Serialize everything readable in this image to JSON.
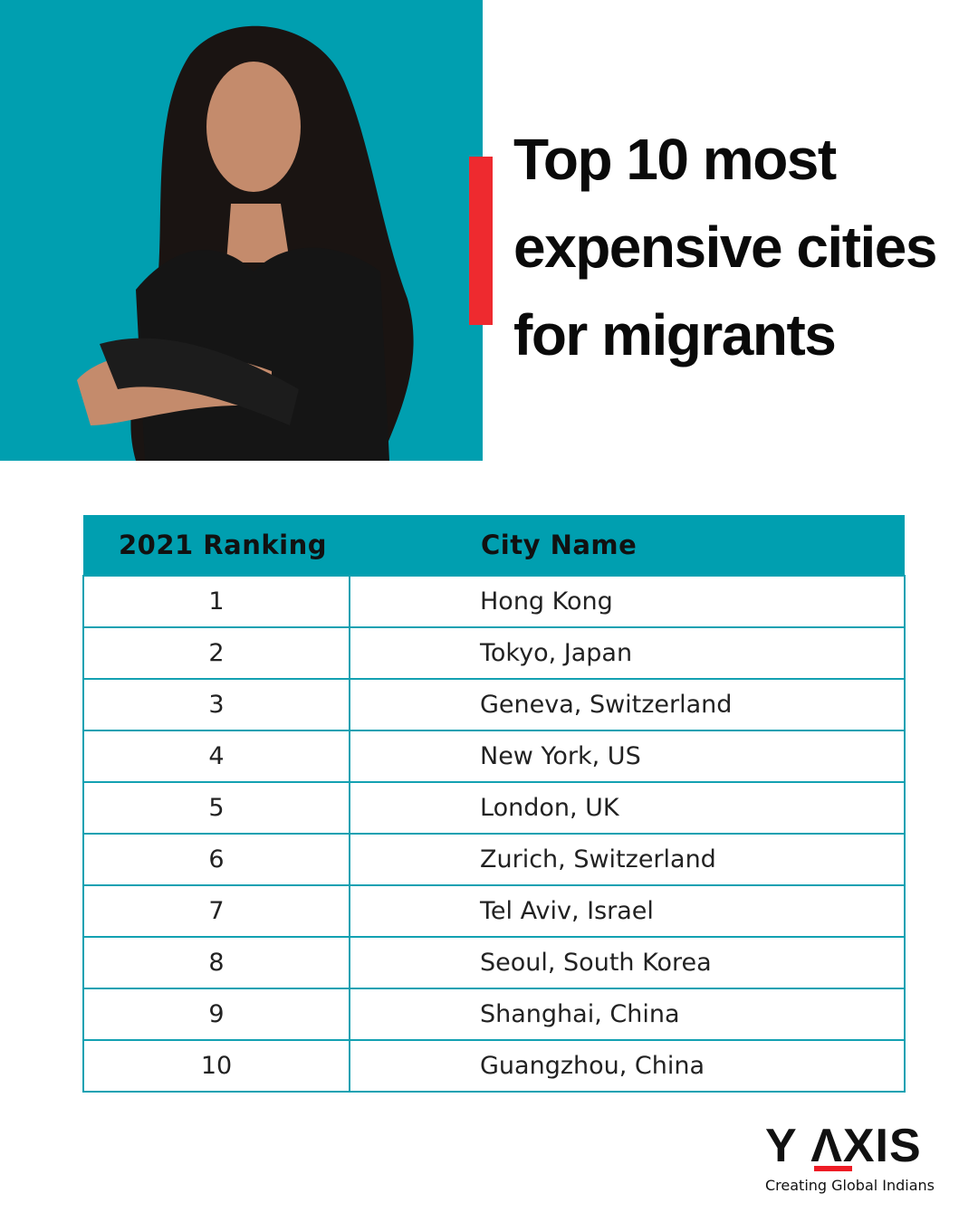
{
  "title": "Top 10 most expensive cities for migrants",
  "title_lines": [
    "Top 10 most",
    "expensive cities",
    "for migrants"
  ],
  "colors": {
    "teal": "#009fb0",
    "red": "#ee2a2f"
  },
  "table": {
    "headers": [
      "2021 Ranking",
      "City Name"
    ],
    "rows": [
      {
        "rank": "1",
        "city": "Hong Kong"
      },
      {
        "rank": "2",
        "city": "Tokyo, Japan"
      },
      {
        "rank": "3",
        "city": "Geneva, Switzerland"
      },
      {
        "rank": "4",
        "city": "New York, US"
      },
      {
        "rank": "5",
        "city": "London, UK"
      },
      {
        "rank": "6",
        "city": "Zurich, Switzerland"
      },
      {
        "rank": "7",
        "city": "Tel Aviv, Israel"
      },
      {
        "rank": "8",
        "city": "Seoul, South Korea"
      },
      {
        "rank": "9",
        "city": "Shanghai, China"
      },
      {
        "rank": "10",
        "city": "Guangzhou, China"
      }
    ]
  },
  "logo": {
    "name": "Y AXIS",
    "tagline": "Creating Global Indians"
  }
}
